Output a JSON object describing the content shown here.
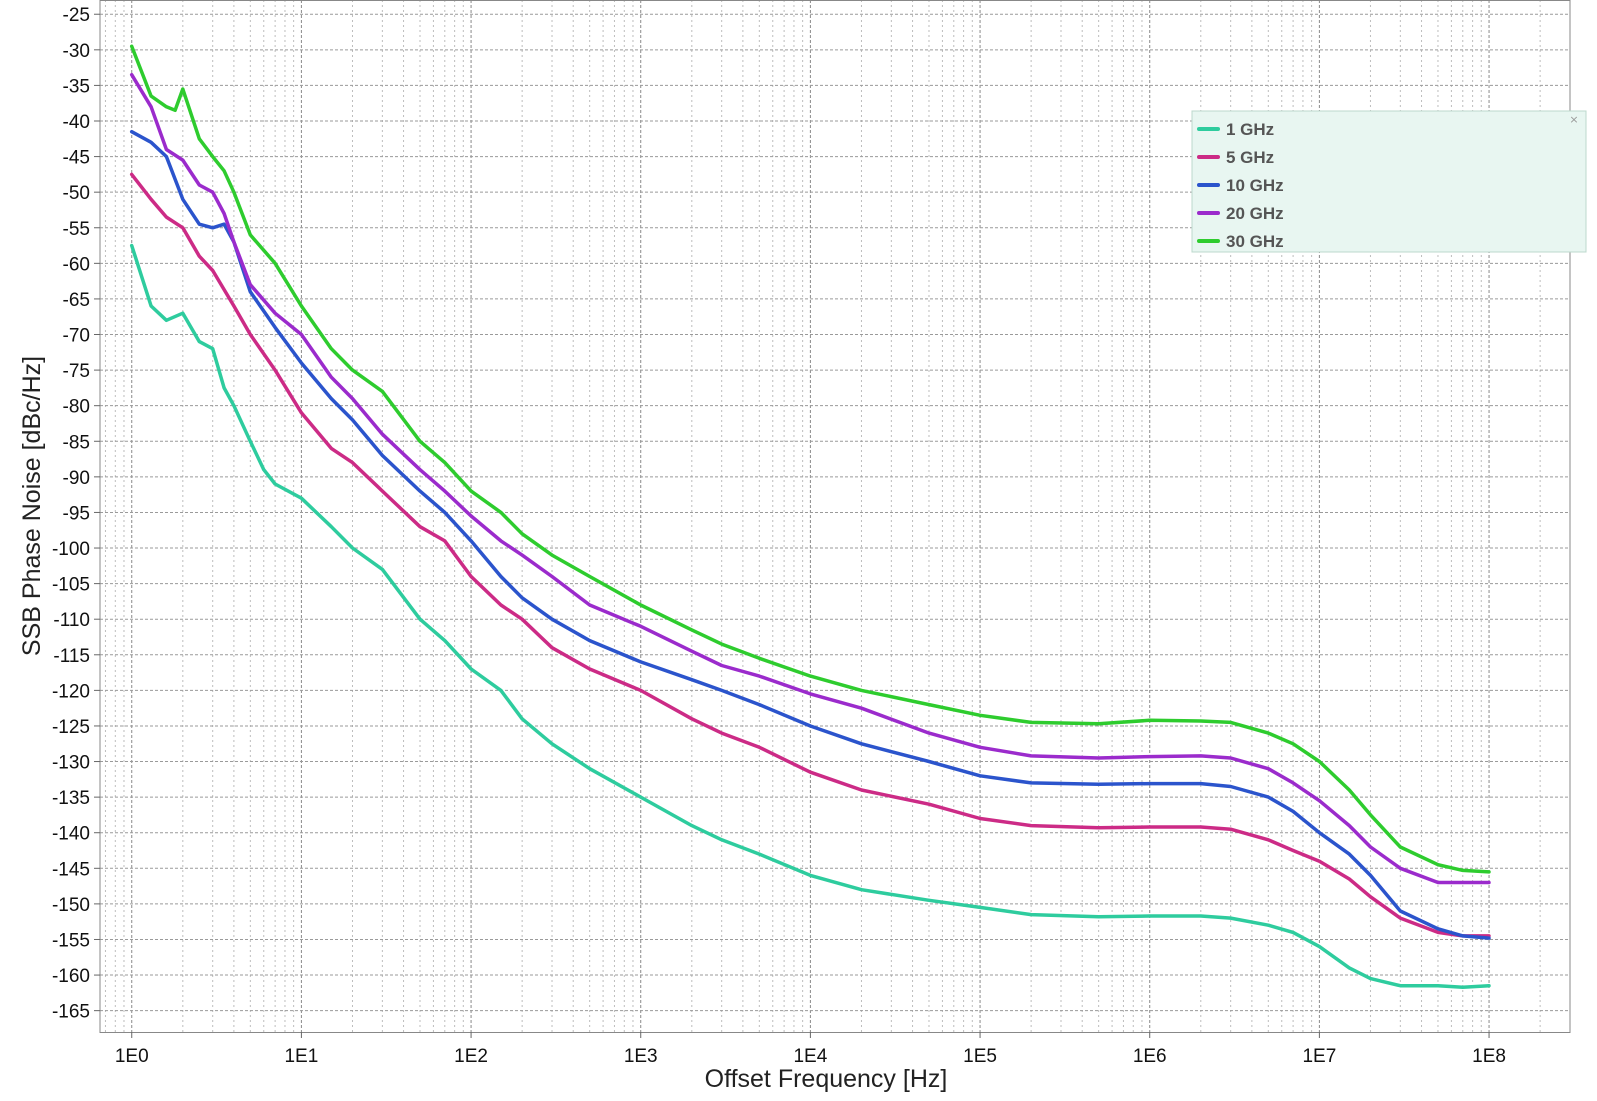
{
  "chart_data": {
    "type": "line",
    "xscale": "log",
    "xlabel": "Offset Frequency [Hz]",
    "ylabel": "SSB Phase Noise [dBc/Hz]",
    "xlim": [
      0.65,
      300000000
    ],
    "ylim": [
      -168,
      -23
    ],
    "grid": true,
    "legend_position": "top-right",
    "x_ticks": [
      {
        "value": 1,
        "label": "1E0"
      },
      {
        "value": 10,
        "label": "1E1"
      },
      {
        "value": 100,
        "label": "1E2"
      },
      {
        "value": 1000,
        "label": "1E3"
      },
      {
        "value": 10000,
        "label": "1E4"
      },
      {
        "value": 100000,
        "label": "1E5"
      },
      {
        "value": 1000000,
        "label": "1E6"
      },
      {
        "value": 10000000,
        "label": "1E7"
      },
      {
        "value": 100000000,
        "label": "1E8"
      }
    ],
    "y_ticks": [
      {
        "value": -25,
        "label": "-25"
      },
      {
        "value": -30,
        "label": "-30"
      },
      {
        "value": -35,
        "label": "-35"
      },
      {
        "value": -40,
        "label": "-40"
      },
      {
        "value": -45,
        "label": "-45"
      },
      {
        "value": -50,
        "label": "-50"
      },
      {
        "value": -55,
        "label": "-55"
      },
      {
        "value": -60,
        "label": "-60"
      },
      {
        "value": -65,
        "label": "-65"
      },
      {
        "value": -70,
        "label": "-70"
      },
      {
        "value": -75,
        "label": "-75"
      },
      {
        "value": -80,
        "label": "-80"
      },
      {
        "value": -85,
        "label": "-85"
      },
      {
        "value": -90,
        "label": "-90"
      },
      {
        "value": -95,
        "label": "-95"
      },
      {
        "value": -100,
        "label": "-100"
      },
      {
        "value": -105,
        "label": "-105"
      },
      {
        "value": -110,
        "label": "-110"
      },
      {
        "value": -115,
        "label": "-115"
      },
      {
        "value": -120,
        "label": "-120"
      },
      {
        "value": -125,
        "label": "-125"
      },
      {
        "value": -130,
        "label": "-130"
      },
      {
        "value": -135,
        "label": "-135"
      },
      {
        "value": -140,
        "label": "-140"
      },
      {
        "value": -145,
        "label": "-145"
      },
      {
        "value": -150,
        "label": "-150"
      },
      {
        "value": -155,
        "label": "-155"
      },
      {
        "value": -160,
        "label": "-160"
      },
      {
        "value": -165,
        "label": "-165"
      }
    ],
    "series": [
      {
        "name": "1 GHz",
        "color": "#2ecc9e",
        "x": [
          1,
          1.3,
          1.6,
          2.0,
          2.5,
          3.0,
          3.5,
          4.0,
          5.0,
          6.0,
          7.0,
          10,
          15,
          20,
          30,
          50,
          70,
          100,
          150,
          200,
          300,
          500,
          1000,
          2000,
          3000,
          5000,
          10000,
          20000,
          50000,
          100000,
          200000,
          500000,
          1000000,
          2000000,
          3000000,
          5000000,
          7000000,
          10000000,
          15000000,
          20000000,
          30000000,
          50000000,
          70000000,
          100000000
        ],
        "y": [
          -57.5,
          -66,
          -68,
          -67,
          -71,
          -72,
          -77.5,
          -80,
          -85,
          -89,
          -91,
          -93,
          -97,
          -100,
          -103,
          -110,
          -113,
          -117,
          -120,
          -124,
          -127.5,
          -131,
          -135,
          -139,
          -141,
          -143,
          -146,
          -148,
          -149.5,
          -150.5,
          -151.5,
          -151.8,
          -151.7,
          -151.7,
          -152,
          -153,
          -154,
          -156,
          -159,
          -160.5,
          -161.5,
          -161.5,
          -161.7,
          -161.5
        ]
      },
      {
        "name": "5 GHz",
        "color": "#cc2b86",
        "x": [
          1,
          1.3,
          1.6,
          2.0,
          2.5,
          3.0,
          4.0,
          5.0,
          7.0,
          10,
          15,
          20,
          30,
          50,
          70,
          100,
          150,
          200,
          300,
          500,
          1000,
          2000,
          3000,
          5000,
          10000,
          20000,
          50000,
          100000,
          200000,
          500000,
          1000000,
          2000000,
          3000000,
          5000000,
          7000000,
          10000000,
          15000000,
          20000000,
          30000000,
          50000000,
          70000000,
          100000000
        ],
        "y": [
          -47.5,
          -51,
          -53.5,
          -55,
          -59,
          -61,
          -66,
          -70,
          -75,
          -81,
          -86,
          -88,
          -92,
          -97,
          -99,
          -104,
          -108,
          -110,
          -114,
          -117,
          -120,
          -124,
          -126,
          -128,
          -131.5,
          -134,
          -136,
          -138,
          -139,
          -139.3,
          -139.2,
          -139.2,
          -139.5,
          -141,
          -142.5,
          -144,
          -146.5,
          -149,
          -152,
          -154,
          -154.5,
          -154.5
        ]
      },
      {
        "name": "10 GHz",
        "color": "#2b54cc",
        "x": [
          1,
          1.3,
          1.6,
          2.0,
          2.5,
          3.0,
          3.5,
          4.0,
          5.0,
          7.0,
          10,
          15,
          20,
          30,
          50,
          70,
          100,
          150,
          200,
          300,
          500,
          1000,
          2000,
          3000,
          5000,
          10000,
          20000,
          50000,
          100000,
          200000,
          500000,
          1000000,
          2000000,
          3000000,
          5000000,
          7000000,
          10000000,
          15000000,
          20000000,
          30000000,
          50000000,
          70000000,
          100000000
        ],
        "y": [
          -41.5,
          -43,
          -45,
          -51,
          -54.5,
          -55,
          -54.5,
          -57,
          -64,
          -69,
          -74,
          -79,
          -82,
          -87,
          -92,
          -95,
          -99,
          -104,
          -107,
          -110,
          -113,
          -116,
          -118.5,
          -120,
          -122,
          -125,
          -127.5,
          -130,
          -132,
          -133,
          -133.2,
          -133.1,
          -133.1,
          -133.5,
          -135,
          -137,
          -140,
          -143,
          -146,
          -151,
          -153.5,
          -154.5,
          -154.8
        ]
      },
      {
        "name": "20 GHz",
        "color": "#9b2bcc",
        "x": [
          1,
          1.3,
          1.6,
          2.0,
          2.5,
          3.0,
          3.5,
          4.0,
          5.0,
          7.0,
          10,
          15,
          20,
          30,
          50,
          70,
          100,
          150,
          200,
          300,
          500,
          1000,
          2000,
          3000,
          5000,
          10000,
          20000,
          50000,
          100000,
          200000,
          500000,
          1000000,
          2000000,
          3000000,
          5000000,
          7000000,
          10000000,
          15000000,
          20000000,
          30000000,
          50000000,
          70000000,
          100000000
        ],
        "y": [
          -33.5,
          -38,
          -44,
          -45.5,
          -49,
          -50,
          -53,
          -57,
          -63,
          -67,
          -70,
          -76,
          -79,
          -84,
          -89,
          -92,
          -95.5,
          -99,
          -101,
          -104,
          -108,
          -111,
          -114.5,
          -116.5,
          -118,
          -120.5,
          -122.5,
          -126,
          -128,
          -129.2,
          -129.5,
          -129.3,
          -129.2,
          -129.5,
          -131,
          -133,
          -135.5,
          -139,
          -142,
          -145,
          -147,
          -147,
          -147
        ]
      },
      {
        "name": "30 GHz",
        "color": "#2ecc2e",
        "x": [
          1,
          1.3,
          1.6,
          1.8,
          2.0,
          2.5,
          3.0,
          3.5,
          4.0,
          5.0,
          7.0,
          10,
          15,
          20,
          30,
          50,
          70,
          100,
          150,
          200,
          300,
          500,
          1000,
          2000,
          3000,
          5000,
          10000,
          20000,
          50000,
          100000,
          200000,
          500000,
          1000000,
          2000000,
          3000000,
          5000000,
          7000000,
          10000000,
          15000000,
          20000000,
          30000000,
          50000000,
          70000000,
          100000000
        ],
        "y": [
          -29.5,
          -36.5,
          -38,
          -38.5,
          -35.5,
          -42.5,
          -45,
          -47,
          -50,
          -56,
          -60,
          -66,
          -72,
          -75,
          -78,
          -85,
          -88,
          -92,
          -95,
          -98,
          -101,
          -104,
          -108,
          -111.5,
          -113.5,
          -115.5,
          -118,
          -120,
          -122,
          -123.5,
          -124.5,
          -124.7,
          -124.2,
          -124.3,
          -124.5,
          -126,
          -127.5,
          -130,
          -134,
          -137.5,
          -142,
          -144.5,
          -145.3,
          -145.5
        ]
      }
    ]
  }
}
